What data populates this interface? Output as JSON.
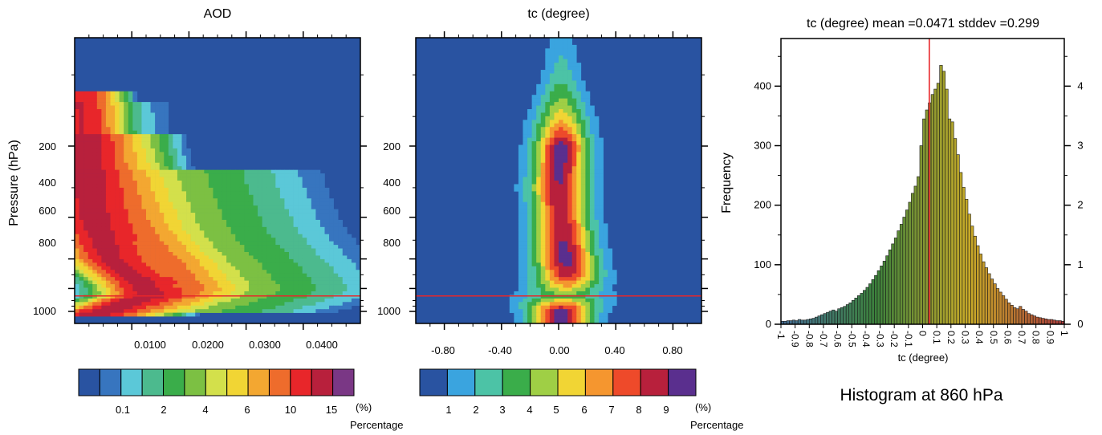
{
  "chart_data": [
    {
      "type": "heatmap",
      "title": "AOD",
      "xlabel": "",
      "ylabel": "Pressure (hPa)",
      "xlim": [
        0.0,
        0.05
      ],
      "y_scale": "log",
      "ylim": [
        1050,
        50
      ],
      "xticks": [
        0.01,
        0.02,
        0.03,
        0.04
      ],
      "xtick_labels": [
        "0.0100",
        "0.0200",
        "0.0300",
        "0.0400"
      ],
      "yticks": [
        200,
        400,
        600,
        800,
        1000
      ],
      "ytick_labels": [
        "200",
        "400",
        "600",
        "800",
        "1000"
      ],
      "reference_line": {
        "pressure_hPa": 860,
        "color": "#e8262a"
      },
      "ridges": [
        {
          "points": [
            [
              0.0009,
              130
            ],
            [
              0.0015,
              200
            ],
            [
              0.003,
              400
            ],
            [
              0.006,
              600
            ],
            [
              0.011,
              750
            ],
            [
              0.013,
              860
            ],
            [
              0.01,
              900
            ],
            [
              0.006,
              980
            ],
            [
              0.003,
              1040
            ]
          ],
          "peak_percent": 15,
          "width": 0.003
        },
        {
          "points": [
            [
              0.0035,
              200
            ],
            [
              0.009,
              450
            ],
            [
              0.015,
              650
            ],
            [
              0.018,
              800
            ],
            [
              0.016,
              860
            ],
            [
              0.011,
              950
            ],
            [
              0.005,
              1040
            ]
          ],
          "peak_percent": 6,
          "width": 0.005
        }
      ],
      "colorbar": {
        "unit": "(%)",
        "label": "Percentage",
        "tick_labels": [
          "0.1",
          "2",
          "4",
          "6",
          "10",
          "15"
        ],
        "colors": [
          "#2953a1",
          "#3775bf",
          "#5bc8d8",
          "#4cba8e",
          "#3aad4a",
          "#7cc043",
          "#d3e04b",
          "#f1d534",
          "#f3a731",
          "#ee6c2c",
          "#e8262a",
          "#b8203c",
          "#7a3785"
        ]
      }
    },
    {
      "type": "heatmap",
      "title": "tc (degree)",
      "xlabel": "",
      "ylabel": "",
      "xlim": [
        -1.0,
        1.0
      ],
      "y_scale": "log",
      "ylim": [
        1050,
        50
      ],
      "xticks": [
        -0.8,
        -0.4,
        0.0,
        0.4,
        0.8
      ],
      "xtick_labels": [
        "-0.80",
        "-0.40",
        "0.00",
        "0.40",
        "0.80"
      ],
      "yticks": [
        200,
        400,
        600,
        800,
        1000
      ],
      "ytick_labels": [
        "200",
        "400",
        "600",
        "800",
        "1000"
      ],
      "reference_line": {
        "pressure_hPa": 860,
        "color": "#e8262a"
      },
      "center_profile": [
        [
          50,
          0.02
        ],
        [
          150,
          0.02
        ],
        [
          200,
          0.02
        ],
        [
          300,
          0.0
        ],
        [
          400,
          0.02
        ],
        [
          500,
          0.03
        ],
        [
          600,
          0.05
        ],
        [
          700,
          0.06
        ],
        [
          800,
          0.05
        ],
        [
          860,
          0.03
        ],
        [
          950,
          0.02
        ],
        [
          1050,
          0.02
        ]
      ],
      "peak_profile": [
        [
          50,
          0.5
        ],
        [
          100,
          2
        ],
        [
          150,
          5
        ],
        [
          200,
          9
        ],
        [
          400,
          8
        ],
        [
          600,
          9
        ],
        [
          700,
          8
        ],
        [
          800,
          5
        ],
        [
          860,
          3
        ],
        [
          920,
          6
        ],
        [
          1000,
          9
        ],
        [
          1050,
          9
        ]
      ],
      "spread_profile": [
        [
          50,
          0.06
        ],
        [
          100,
          0.09
        ],
        [
          150,
          0.12
        ],
        [
          300,
          0.13
        ],
        [
          600,
          0.14
        ],
        [
          800,
          0.16
        ],
        [
          860,
          0.2
        ],
        [
          1000,
          0.15
        ],
        [
          1050,
          0.14
        ]
      ],
      "colorbar": {
        "unit": "(%)",
        "label": "Percentage",
        "tick_labels": [
          "1",
          "2",
          "3",
          "4",
          "5",
          "6",
          "7",
          "8",
          "9"
        ],
        "colors": [
          "#2953a1",
          "#3aa4df",
          "#4cc3a6",
          "#3aad4a",
          "#9fcf45",
          "#f1d534",
          "#f5962f",
          "#ee4a2a",
          "#b8203c",
          "#5a2f8e"
        ]
      }
    },
    {
      "type": "bar",
      "title": "tc (degree) mean =0.0471 stddev =0.299",
      "xlabel": "tc  (degree)",
      "ylabel": "Frequency",
      "subtitle": "Histogram at 860 hPa",
      "xlim": [
        -1.0,
        1.0
      ],
      "ylim": [
        0,
        480
      ],
      "y2lim": [
        0,
        4.8
      ],
      "bin_width": 0.02,
      "mean": 0.0471,
      "stddev": 0.299,
      "xtick_labels": [
        "-1",
        "-0.9",
        "-0.8",
        "-0.7",
        "-0.6",
        "-0.5",
        "-0.4",
        "-0.3",
        "-0.2",
        "-0.1",
        "0",
        "0.1",
        "0.2",
        "0.3",
        "0.4",
        "0.5",
        "0.6",
        "0.7",
        "0.8",
        "0.9",
        "1"
      ],
      "yticks": [
        0,
        100,
        200,
        300,
        400
      ],
      "y2ticks": [
        0,
        1,
        2,
        3,
        4
      ],
      "frequencies": [
        5,
        5,
        6,
        6,
        7,
        6,
        8,
        7,
        7,
        8,
        9,
        10,
        12,
        14,
        16,
        18,
        20,
        22,
        24,
        22,
        26,
        28,
        30,
        33,
        36,
        40,
        44,
        48,
        52,
        57,
        62,
        68,
        75,
        82,
        90,
        98,
        106,
        115,
        125,
        135,
        145,
        157,
        168,
        180,
        192,
        205,
        220,
        232,
        248,
        300,
        345,
        360,
        372,
        386,
        395,
        405,
        435,
        425,
        395,
        345,
        340,
        312,
        285,
        255,
        230,
        210,
        185,
        165,
        148,
        132,
        118,
        105,
        95,
        85,
        76,
        68,
        60,
        54,
        48,
        42,
        36,
        32,
        28,
        26,
        30,
        25,
        22,
        18,
        16,
        14,
        12,
        11,
        10,
        9,
        8,
        8,
        7,
        6,
        6,
        5
      ]
    }
  ]
}
